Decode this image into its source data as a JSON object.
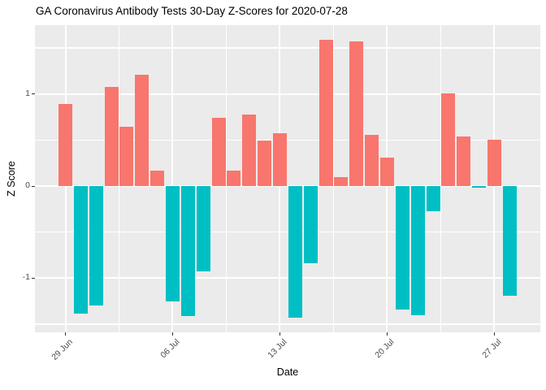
{
  "title": "GA Coronavirus Antibody Tests 30-Day Z-Scores for 2020-07-28",
  "chart_data": {
    "type": "bar",
    "title": "GA Coronavirus Antibody Tests 30-Day Z-Scores for 2020-07-28",
    "xlabel": "Date",
    "ylabel": "Z Score",
    "x": [
      "2020-06-29",
      "2020-06-30",
      "2020-07-01",
      "2020-07-02",
      "2020-07-03",
      "2020-07-04",
      "2020-07-05",
      "2020-07-06",
      "2020-07-07",
      "2020-07-08",
      "2020-07-09",
      "2020-07-10",
      "2020-07-11",
      "2020-07-12",
      "2020-07-13",
      "2020-07-14",
      "2020-07-15",
      "2020-07-16",
      "2020-07-17",
      "2020-07-18",
      "2020-07-19",
      "2020-07-20",
      "2020-07-21",
      "2020-07-22",
      "2020-07-23",
      "2020-07-24",
      "2020-07-25",
      "2020-07-26",
      "2020-07-27",
      "2020-07-28"
    ],
    "values": [
      0.89,
      -1.39,
      -1.3,
      1.08,
      0.64,
      1.21,
      0.17,
      -1.25,
      -1.41,
      -0.93,
      0.74,
      0.17,
      0.78,
      0.49,
      0.57,
      -1.43,
      -0.84,
      1.59,
      0.1,
      1.57,
      0.56,
      0.31,
      -1.34,
      -1.4,
      -0.27,
      1.01,
      0.54,
      -0.02,
      0.5,
      -1.19
    ],
    "x_tick_labels": [
      "29 Jun",
      "06 Jul",
      "13 Jul",
      "20 Jul",
      "27 Jul"
    ],
    "x_tick_day_offsets": [
      0,
      7,
      14,
      21,
      28
    ],
    "x_minor_day_offsets": [
      3.5,
      10.5,
      17.5,
      24.5
    ],
    "y_tick_labels": [
      "-1",
      "0",
      "1"
    ],
    "y_ticks": [
      -1,
      0,
      1
    ],
    "y_minor_ticks": [
      -1.5,
      -0.5,
      0.5,
      1.5
    ],
    "ylim": [
      -1.59,
      1.75
    ],
    "grid": "white major+minor gridlines on gray panel",
    "legend": "none",
    "colors": {
      "positive_bar": "#F8766D",
      "negative_bar": "#00BFC4",
      "panel_background": "#EBEBEB",
      "gridline": "#FFFFFF",
      "axis_text": "#4D4D4D",
      "tick_mark": "#333333",
      "title_text": "#000000"
    }
  }
}
